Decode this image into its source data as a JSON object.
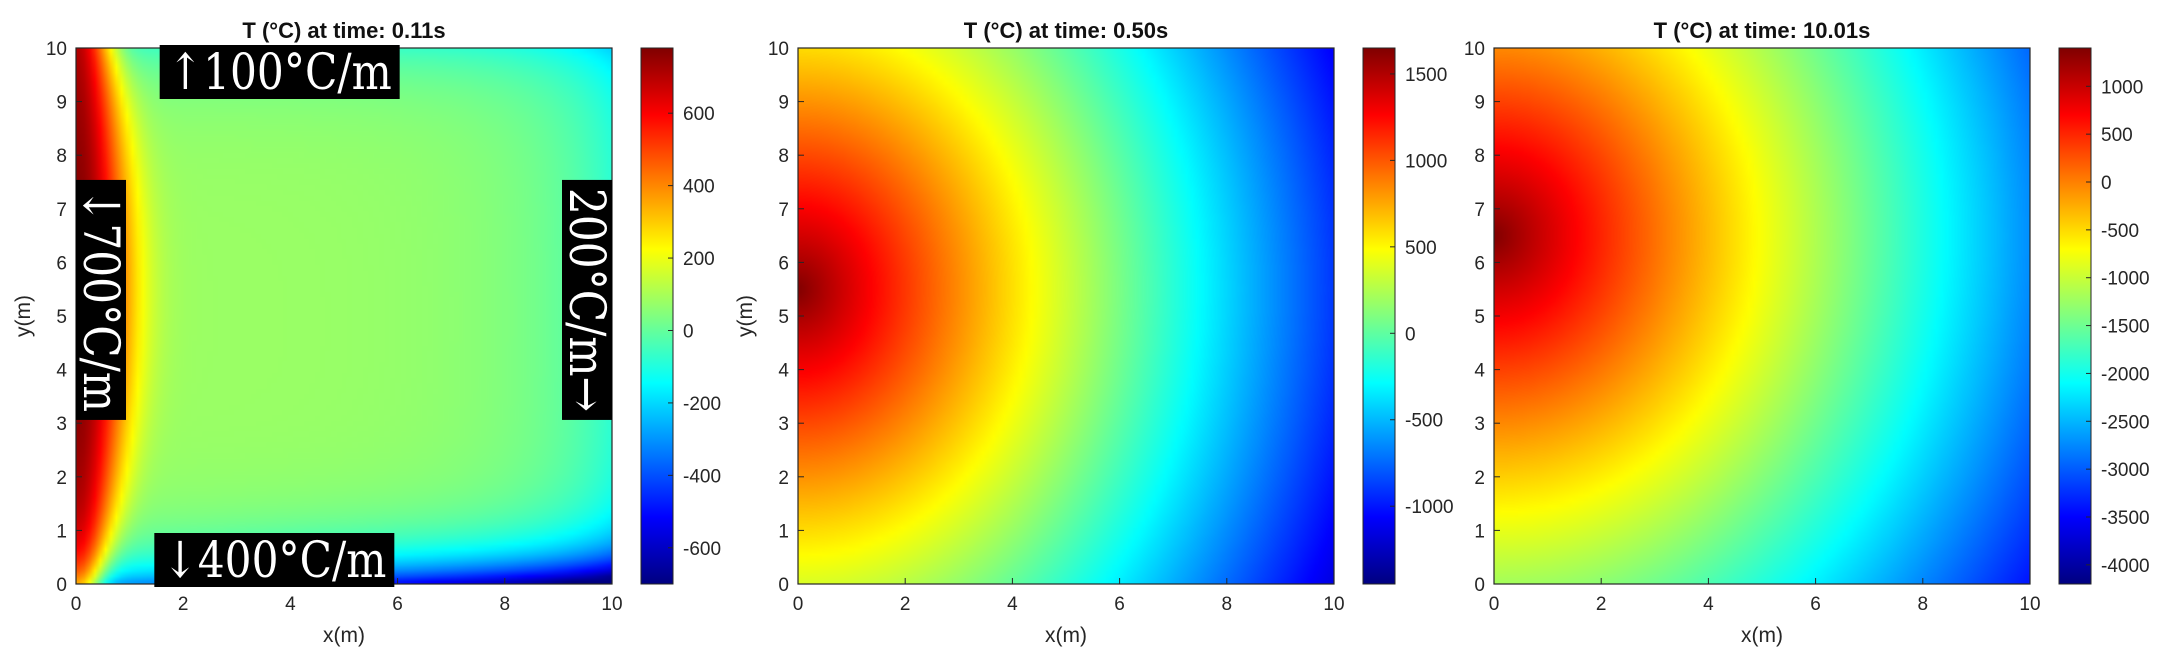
{
  "chart_data": [
    {
      "type": "heatmap",
      "title": "T (°C) at time: 0.11s",
      "time_label": "T (°C) at time: 0.11s",
      "xlabel": "x(m)",
      "ylabel": "y(m)",
      "xlim": [
        0,
        10
      ],
      "ylim": [
        0,
        10
      ],
      "x_ticks": [
        0,
        2,
        4,
        6,
        8,
        10
      ],
      "y_ticks": [
        0,
        1,
        2,
        3,
        4,
        5,
        6,
        7,
        8,
        9,
        10
      ],
      "colorbar": {
        "colormap": "jet",
        "range": [
          -700,
          780
        ],
        "ticks": [
          -600,
          -400,
          -200,
          0,
          200,
          400,
          600
        ]
      },
      "field": {
        "peak": 780,
        "peak_at": [
          0,
          5.5
        ],
        "hot_band_width": 1.0,
        "interior": 80,
        "bottom_right_min": -700
      },
      "annotations": [
        {
          "side": "top",
          "text": "↑100°C/m"
        },
        {
          "side": "bottom",
          "text": "↓400°C/m"
        },
        {
          "side": "left",
          "text": "↓700°C/m"
        },
        {
          "side": "right",
          "text": "200°C/m→"
        }
      ]
    },
    {
      "type": "heatmap",
      "title": "T (°C) at time: 0.50s",
      "time_label": "T (°C) at time: 0.50s",
      "xlabel": "x(m)",
      "ylabel": "y(m)",
      "xlim": [
        0,
        10
      ],
      "ylim": [
        0,
        10
      ],
      "x_ticks": [
        0,
        2,
        4,
        6,
        8,
        10
      ],
      "y_ticks": [
        0,
        1,
        2,
        3,
        4,
        5,
        6,
        7,
        8,
        9,
        10
      ],
      "colorbar": {
        "colormap": "jet",
        "range": [
          -1450,
          1650
        ],
        "ticks": [
          -1000,
          -500,
          0,
          500,
          1000,
          1500
        ]
      },
      "field": {
        "peak": 1650,
        "peak_at": [
          0,
          5.5
        ],
        "bottom_right_min": -1450
      },
      "annotations": []
    },
    {
      "type": "heatmap",
      "title": "T (°C) at time: 10.01s",
      "time_label": "T (°C) at time: 10.01s",
      "xlabel": "x(m)",
      "ylabel": "",
      "xlim": [
        0,
        10
      ],
      "ylim": [
        0,
        10
      ],
      "x_ticks": [
        0,
        2,
        4,
        6,
        8,
        10
      ],
      "y_ticks": [
        0,
        1,
        2,
        3,
        4,
        5,
        6,
        7,
        8,
        9,
        10
      ],
      "colorbar": {
        "colormap": "jet",
        "range": [
          -4200,
          1400
        ],
        "ticks": [
          -4000,
          -3500,
          -3000,
          -2500,
          -2000,
          -1500,
          -1000,
          -500,
          0,
          500,
          1000
        ]
      },
      "field": {
        "peak": 1400,
        "peak_at": [
          0,
          6.5
        ],
        "bottom_right_min": -4200
      },
      "annotations": []
    }
  ]
}
